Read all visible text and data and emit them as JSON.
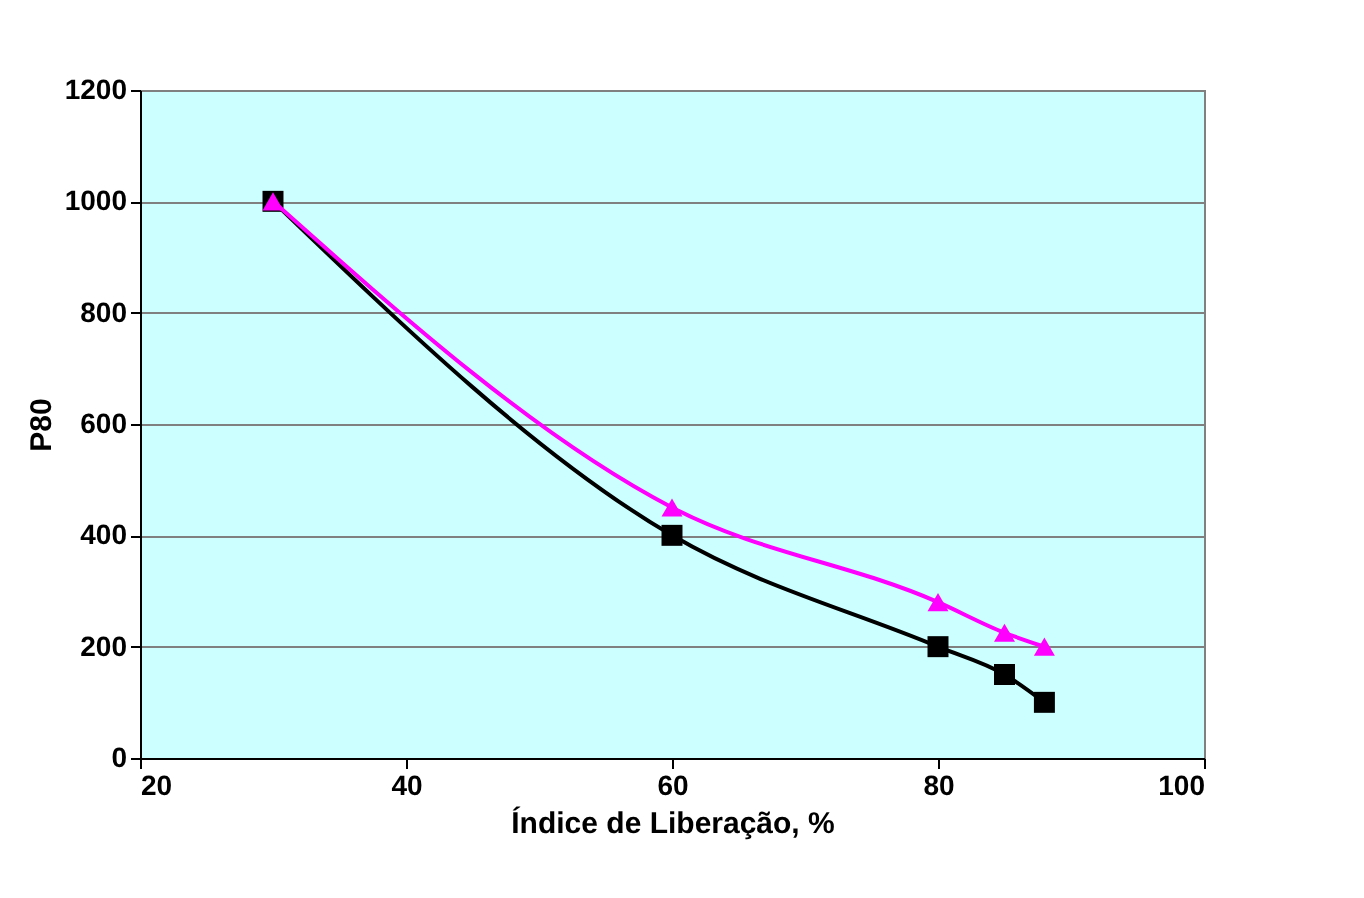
{
  "chart_data": {
    "type": "line",
    "xlabel": "Índice de Liberação, %",
    "ylabel": "P80",
    "xlim": [
      20,
      100
    ],
    "xticks": [
      20,
      40,
      60,
      80,
      100
    ],
    "ylim": [
      0,
      1200
    ],
    "yticks": [
      0,
      200,
      400,
      600,
      800,
      1000,
      1200
    ],
    "grid": "y",
    "series": [
      {
        "color": "#000000",
        "marker": "square",
        "x": [
          30,
          60,
          80,
          85,
          88
        ],
        "values": [
          1000,
          400,
          200,
          150,
          100
        ]
      },
      {
        "color": "#ff00ff",
        "marker": "triangle",
        "x": [
          30,
          60,
          80,
          85,
          88
        ],
        "values": [
          1000,
          450,
          280,
          225,
          200
        ]
      }
    ]
  }
}
